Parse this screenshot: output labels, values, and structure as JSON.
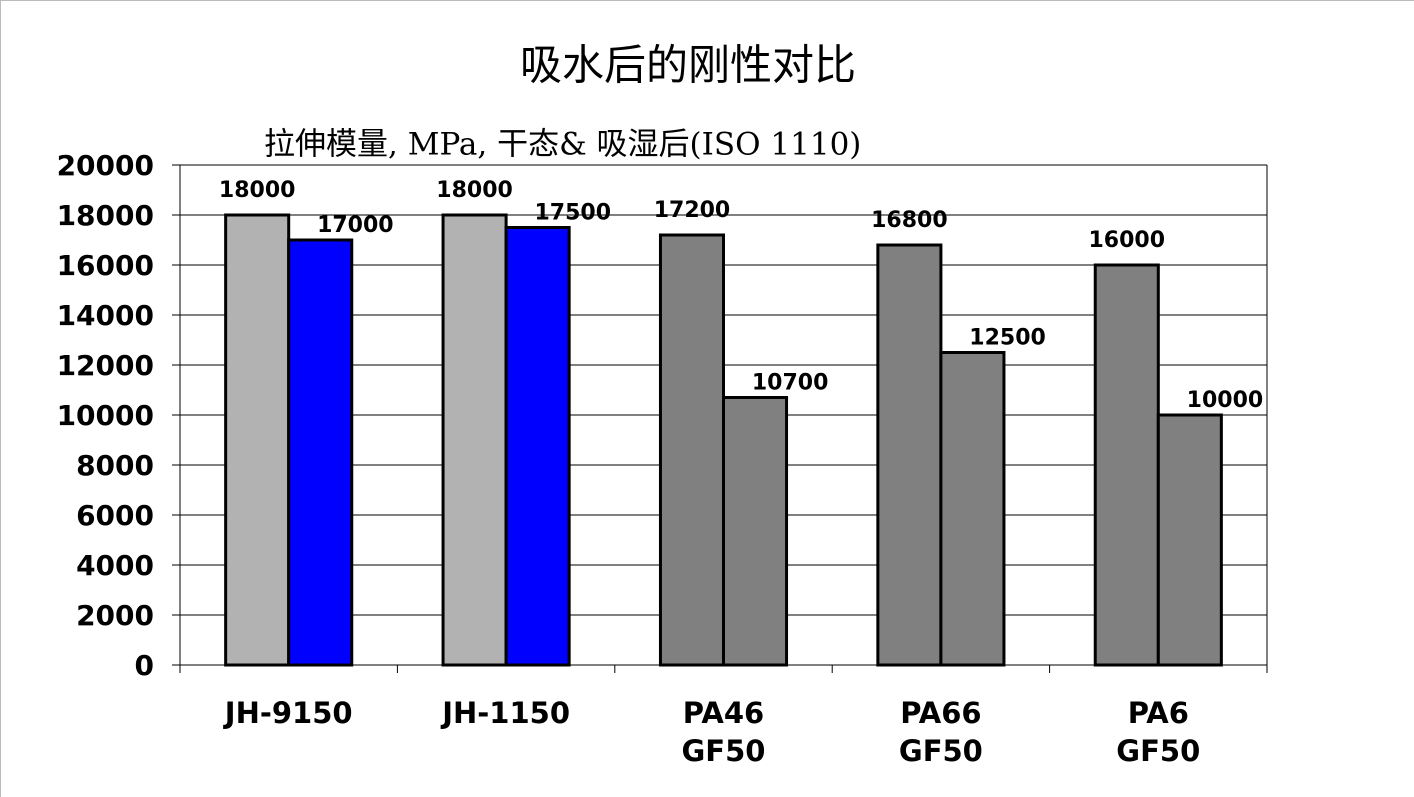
{
  "chart_data": {
    "type": "bar",
    "title": "吸水后的刚性对比",
    "subtitle": "拉伸模量, MPa, 干态& 吸湿后(ISO 1110)",
    "categories": [
      "JH-9150",
      "JH-1150",
      "PA46\nGF50",
      "PA66\nGF50",
      "PA6\nGF50"
    ],
    "series": [
      {
        "colors": [
          "#b2b2b2",
          "#b2b2b2",
          "#808080",
          "#808080",
          "#808080"
        ],
        "values": [
          18000,
          18000,
          17200,
          16800,
          16000
        ]
      },
      {
        "colors": [
          "#0000ff",
          "#0000ff",
          "#808080",
          "#808080",
          "#808080"
        ],
        "values": [
          17000,
          17500,
          10700,
          12500,
          10000
        ]
      }
    ],
    "ylim": [
      0,
      20000
    ],
    "yticks": [
      0,
      2000,
      4000,
      6000,
      8000,
      10000,
      12000,
      14000,
      16000,
      18000,
      20000
    ],
    "grid": true
  }
}
